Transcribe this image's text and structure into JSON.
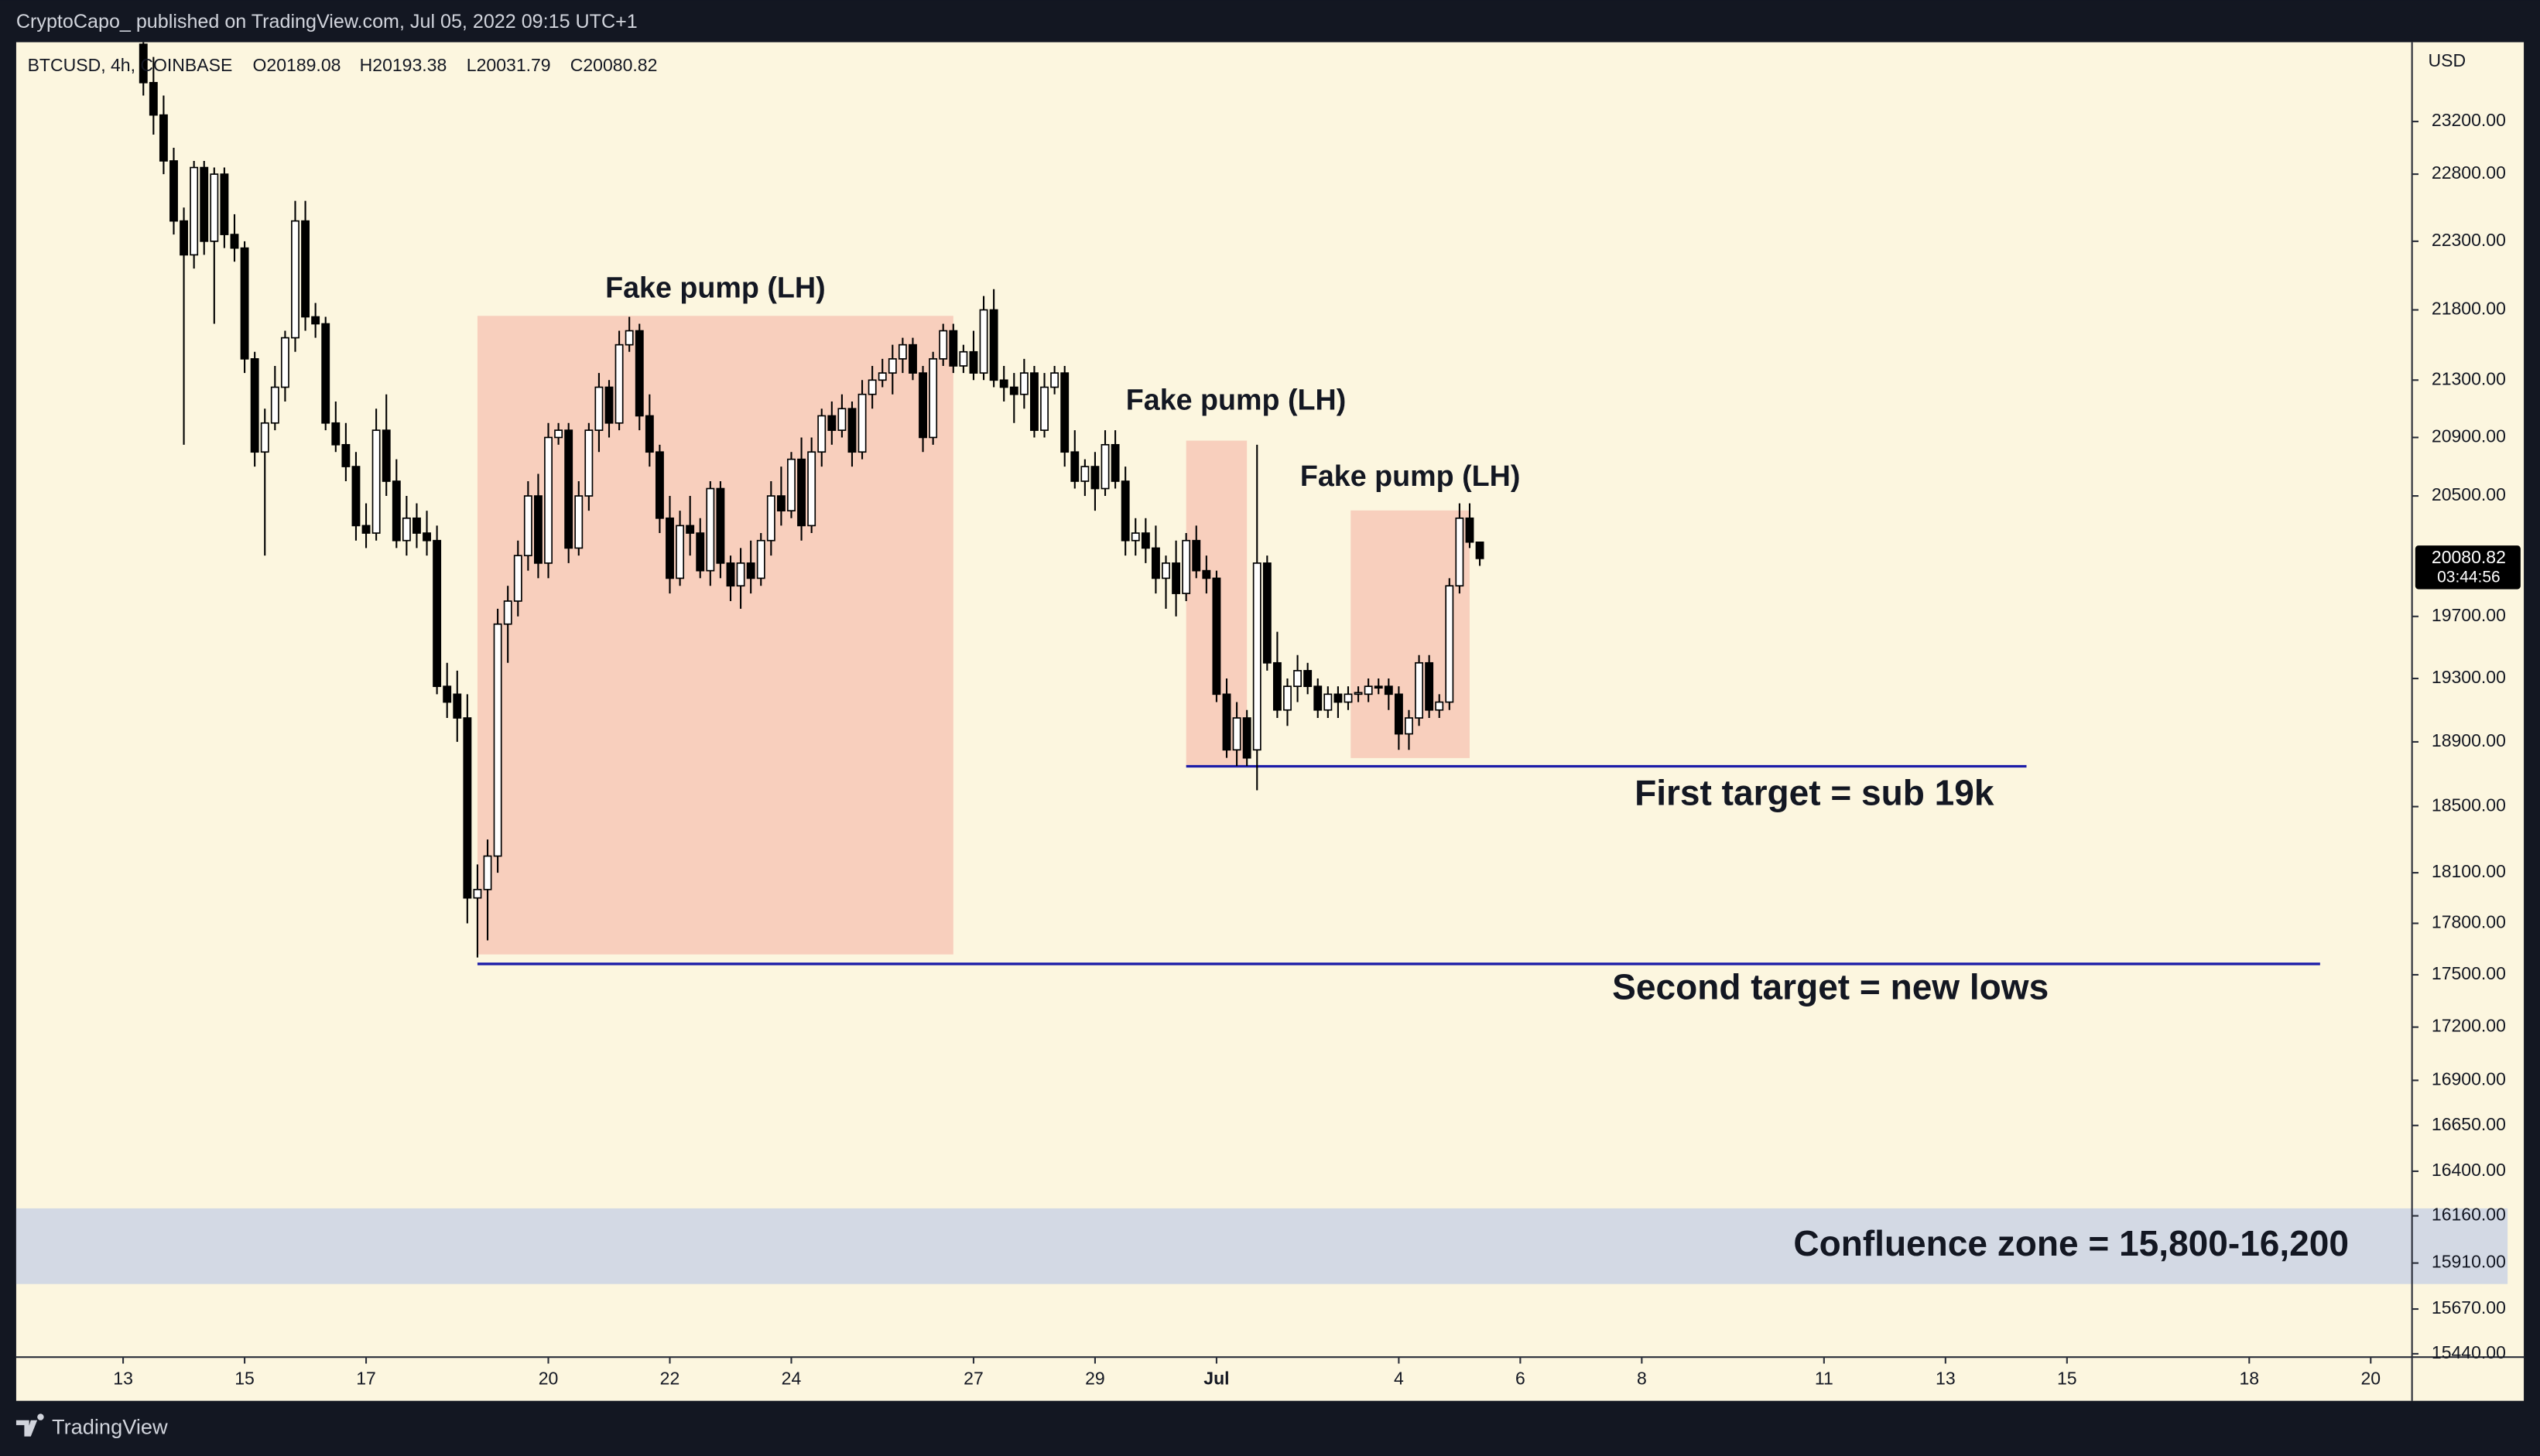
{
  "chart_data": {
    "type": "candlestick",
    "header": "CryptoCapo_ published on TradingView.com, Jul 05, 2022 09:15 UTC+1",
    "symbol": "BTCUSD, 4h, COINBASE",
    "legend_values": [
      "O20189.08",
      "H20193.38",
      "L20031.79",
      "C20080.82"
    ],
    "currency": "USD",
    "footer": "TradingView",
    "last_price": {
      "value": 20080.82,
      "label": "20080.82",
      "countdown": "03:44:56"
    },
    "log_scale": true,
    "up_color": "#ffffff",
    "down_color": "#000000",
    "background": "#fcf6df",
    "xlim": [
      -42.24,
      904.32
    ],
    "xticks": [
      {
        "value": 0,
        "label": "13"
      },
      {
        "value": 48,
        "label": "15"
      },
      {
        "value": 96,
        "label": "17"
      },
      {
        "value": 168,
        "label": "20"
      },
      {
        "value": 216,
        "label": "22"
      },
      {
        "value": 264,
        "label": "24"
      },
      {
        "value": 336,
        "label": "27"
      },
      {
        "value": 384,
        "label": "29"
      },
      {
        "value": 432,
        "label": "Jul"
      },
      {
        "value": 504,
        "label": "4"
      },
      {
        "value": 552,
        "label": "6"
      },
      {
        "value": 600,
        "label": "8"
      },
      {
        "value": 672,
        "label": "11"
      },
      {
        "value": 720,
        "label": "13"
      },
      {
        "value": 768,
        "label": "15"
      },
      {
        "value": 840,
        "label": "18"
      },
      {
        "value": 888,
        "label": "20"
      }
    ],
    "ylim": [
      15423,
      23816
    ],
    "yticks": [
      {
        "value": 23200,
        "label": "23200.00"
      },
      {
        "value": 22800,
        "label": "22800.00"
      },
      {
        "value": 22300,
        "label": "22300.00"
      },
      {
        "value": 21800,
        "label": "21800.00"
      },
      {
        "value": 21300,
        "label": "21300.00"
      },
      {
        "value": 20900,
        "label": "20900.00"
      },
      {
        "value": 20500,
        "label": "20500.00"
      },
      {
        "value": 19700,
        "label": "19700.00"
      },
      {
        "value": 19300,
        "label": "19300.00"
      },
      {
        "value": 18900,
        "label": "18900.00"
      },
      {
        "value": 18500,
        "label": "18500.00"
      },
      {
        "value": 18100,
        "label": "18100.00"
      },
      {
        "value": 17800,
        "label": "17800.00"
      },
      {
        "value": 17500,
        "label": "17500.00"
      },
      {
        "value": 17200,
        "label": "17200.00"
      },
      {
        "value": 16900,
        "label": "16900.00"
      },
      {
        "value": 16650,
        "label": "16650.00"
      },
      {
        "value": 16400,
        "label": "16400.00"
      },
      {
        "value": 16160,
        "label": "16160.00"
      },
      {
        "value": 15910,
        "label": "15910.00"
      },
      {
        "value": 15670,
        "label": "15670.00"
      },
      {
        "value": 15440,
        "label": "15440.00"
      }
    ],
    "x": [
      8,
      12,
      16,
      20,
      24,
      28,
      32,
      36,
      40,
      44,
      48,
      52,
      56,
      60,
      64,
      68,
      72,
      76,
      80,
      84,
      88,
      92,
      96,
      100,
      104,
      108,
      112,
      116,
      120,
      124,
      128,
      132,
      136,
      140,
      144,
      148,
      152,
      156,
      160,
      164,
      168,
      172,
      176,
      180,
      184,
      188,
      192,
      196,
      200,
      204,
      208,
      212,
      216,
      220,
      224,
      228,
      232,
      236,
      240,
      244,
      248,
      252,
      256,
      260,
      264,
      268,
      272,
      276,
      280,
      284,
      288,
      292,
      296,
      300,
      304,
      308,
      312,
      316,
      320,
      324,
      328,
      332,
      336,
      340,
      344,
      348,
      352,
      356,
      360,
      364,
      368,
      372,
      376,
      380,
      384,
      388,
      392,
      396,
      400,
      404,
      408,
      412,
      416,
      420,
      424,
      428,
      432,
      436,
      440,
      444,
      448,
      452,
      456,
      460,
      464,
      468,
      472,
      476,
      480,
      484,
      488,
      492,
      496,
      500,
      504,
      508,
      512,
      516,
      520,
      524,
      528,
      532,
      536
    ],
    "ohlc": [
      [
        23800,
        24100,
        23400,
        23500
      ],
      [
        23500,
        23700,
        23100,
        23250
      ],
      [
        23250,
        23400,
        22800,
        22900
      ],
      [
        22900,
        23000,
        22350,
        22450
      ],
      [
        22450,
        22550,
        20850,
        22200
      ],
      [
        22200,
        22900,
        22100,
        22850
      ],
      [
        22850,
        22900,
        22200,
        22300
      ],
      [
        22300,
        22850,
        21700,
        22800
      ],
      [
        22800,
        22850,
        22250,
        22350
      ],
      [
        22350,
        22500,
        22150,
        22250
      ],
      [
        22250,
        22300,
        21350,
        21450
      ],
      [
        21450,
        21500,
        20700,
        20800
      ],
      [
        20800,
        21100,
        20100,
        21000
      ],
      [
        21000,
        21400,
        20950,
        21250
      ],
      [
        21250,
        21650,
        21150,
        21600
      ],
      [
        21600,
        22600,
        21500,
        22450
      ],
      [
        22450,
        22600,
        21650,
        21750
      ],
      [
        21750,
        21850,
        21600,
        21700
      ],
      [
        21700,
        21750,
        20950,
        21000
      ],
      [
        21000,
        21150,
        20800,
        20850
      ],
      [
        20850,
        21000,
        20600,
        20700
      ],
      [
        20700,
        20800,
        20200,
        20300
      ],
      [
        20300,
        20450,
        20150,
        20250
      ],
      [
        20250,
        21100,
        20200,
        20950
      ],
      [
        20950,
        21200,
        20500,
        20600
      ],
      [
        20600,
        20750,
        20150,
        20200
      ],
      [
        20200,
        20500,
        20100,
        20350
      ],
      [
        20350,
        20450,
        20150,
        20250
      ],
      [
        20250,
        20400,
        20100,
        20200
      ],
      [
        20200,
        20300,
        19200,
        19250
      ],
      [
        19250,
        19400,
        19050,
        19150
      ],
      [
        19200,
        19350,
        18900,
        19050
      ],
      [
        19050,
        19200,
        17800,
        17950
      ],
      [
        17950,
        18150,
        17600,
        18000
      ],
      [
        18000,
        18300,
        17700,
        18200
      ],
      [
        18200,
        19750,
        18100,
        19650
      ],
      [
        19650,
        19900,
        19400,
        19800
      ],
      [
        19800,
        20200,
        19700,
        20100
      ],
      [
        20100,
        20600,
        20000,
        20500
      ],
      [
        20500,
        20650,
        19950,
        20050
      ],
      [
        20050,
        21000,
        19950,
        20900
      ],
      [
        20900,
        21000,
        20850,
        20950
      ],
      [
        20950,
        21000,
        20050,
        20150
      ],
      [
        20150,
        20600,
        20100,
        20500
      ],
      [
        20500,
        21000,
        20400,
        20950
      ],
      [
        20950,
        21350,
        20800,
        21250
      ],
      [
        21250,
        21300,
        20900,
        21000
      ],
      [
        21000,
        21650,
        20950,
        21550
      ],
      [
        21550,
        21750,
        21500,
        21650
      ],
      [
        21650,
        21700,
        20950,
        21050
      ],
      [
        21050,
        21200,
        20700,
        20800
      ],
      [
        20800,
        20850,
        20250,
        20350
      ],
      [
        20350,
        20500,
        19850,
        19950
      ],
      [
        19950,
        20400,
        19900,
        20300
      ],
      [
        20300,
        20500,
        20100,
        20250
      ],
      [
        20250,
        20350,
        19950,
        20000
      ],
      [
        20000,
        20600,
        19900,
        20550
      ],
      [
        20550,
        20600,
        19950,
        20050
      ],
      [
        20050,
        20100,
        19800,
        19900
      ],
      [
        19900,
        20150,
        19750,
        20050
      ],
      [
        20050,
        20200,
        19850,
        19950
      ],
      [
        19950,
        20250,
        19900,
        20200
      ],
      [
        20200,
        20600,
        20100,
        20500
      ],
      [
        20500,
        20700,
        20300,
        20400
      ],
      [
        20400,
        20800,
        20350,
        20750
      ],
      [
        20750,
        20900,
        20200,
        20300
      ],
      [
        20300,
        20900,
        20250,
        20800
      ],
      [
        20800,
        21100,
        20700,
        21050
      ],
      [
        21050,
        21150,
        20850,
        20950
      ],
      [
        20950,
        21200,
        20900,
        21100
      ],
      [
        21100,
        21150,
        20700,
        20800
      ],
      [
        20800,
        21300,
        20750,
        21200
      ],
      [
        21200,
        21400,
        21100,
        21300
      ],
      [
        21300,
        21450,
        21250,
        21350
      ],
      [
        21350,
        21550,
        21200,
        21450
      ],
      [
        21450,
        21600,
        21350,
        21550
      ],
      [
        21550,
        21600,
        21300,
        21350
      ],
      [
        21350,
        21400,
        20800,
        20900
      ],
      [
        20900,
        21500,
        20850,
        21450
      ],
      [
        21450,
        21700,
        21400,
        21650
      ],
      [
        21650,
        21700,
        21350,
        21400
      ],
      [
        21400,
        21550,
        21350,
        21500
      ],
      [
        21500,
        21650,
        21300,
        21350
      ],
      [
        21350,
        21900,
        21300,
        21800
      ],
      [
        21800,
        21950,
        21250,
        21300
      ],
      [
        21300,
        21400,
        21150,
        21250
      ],
      [
        21250,
        21350,
        21000,
        21200
      ],
      [
        21200,
        21450,
        21100,
        21350
      ],
      [
        21350,
        21400,
        20900,
        20950
      ],
      [
        20950,
        21350,
        20900,
        21250
      ],
      [
        21250,
        21400,
        21200,
        21350
      ],
      [
        21350,
        21400,
        20700,
        20800
      ],
      [
        20800,
        20950,
        20550,
        20600
      ],
      [
        20600,
        20750,
        20500,
        20700
      ],
      [
        20700,
        20800,
        20400,
        20550
      ],
      [
        20550,
        20950,
        20500,
        20850
      ],
      [
        20850,
        20950,
        20550,
        20600
      ],
      [
        20600,
        20700,
        20100,
        20200
      ],
      [
        20200,
        20350,
        20100,
        20250
      ],
      [
        20250,
        20350,
        20050,
        20150
      ],
      [
        20150,
        20300,
        19850,
        19950
      ],
      [
        19950,
        20100,
        19750,
        20050
      ],
      [
        20050,
        20200,
        19700,
        19850
      ],
      [
        19850,
        20250,
        19800,
        20200
      ],
      [
        20200,
        20300,
        19950,
        20000
      ],
      [
        20000,
        20100,
        19850,
        19950
      ],
      [
        19950,
        20000,
        19150,
        19200
      ],
      [
        19200,
        19300,
        18800,
        18850
      ],
      [
        18850,
        19150,
        18750,
        19050
      ],
      [
        19050,
        19100,
        18750,
        18800
      ],
      [
        18850,
        20850,
        18600,
        20050
      ],
      [
        20050,
        20100,
        19350,
        19400
      ],
      [
        19400,
        19600,
        19050,
        19100
      ],
      [
        19100,
        19300,
        19000,
        19250
      ],
      [
        19250,
        19450,
        19150,
        19350
      ],
      [
        19350,
        19400,
        19200,
        19250
      ],
      [
        19250,
        19300,
        19050,
        19100
      ],
      [
        19100,
        19250,
        19050,
        19200
      ],
      [
        19200,
        19250,
        19050,
        19150
      ],
      [
        19150,
        19250,
        19100,
        19200
      ],
      [
        19200,
        19250,
        19150,
        19210
      ],
      [
        19200,
        19300,
        19150,
        19250
      ],
      [
        19250,
        19300,
        19200,
        19240
      ],
      [
        19250,
        19300,
        19100,
        19200
      ],
      [
        19200,
        19250,
        18850,
        18950
      ],
      [
        18950,
        19100,
        18850,
        19050
      ],
      [
        19050,
        19450,
        19000,
        19400
      ],
      [
        19400,
        19450,
        19050,
        19100
      ],
      [
        19100,
        19200,
        19050,
        19150
      ],
      [
        19150,
        19950,
        19100,
        19900
      ],
      [
        19900,
        20450,
        19850,
        20350
      ],
      [
        20350,
        20450,
        20150,
        20190
      ],
      [
        20189.08,
        20193.38,
        20031.79,
        20080.82
      ]
    ],
    "zones": [
      {
        "label": "Fake pump (LH)",
        "x": [
          140,
          328
        ],
        "y": [
          17618,
          21757
        ],
        "color": "#f8cfbd"
      },
      {
        "label": "Fake pump (LH)",
        "x": [
          420,
          444
        ],
        "y": [
          18748,
          20878
        ],
        "color": "#f8cfbd"
      },
      {
        "label": "Fake pump (LH)",
        "x": [
          485,
          532
        ],
        "y": [
          18799,
          20402
        ],
        "color": "#f8cfbd"
      }
    ],
    "levels": [
      {
        "label": "First target = sub 19k",
        "x": [
          420,
          752
        ],
        "value": 18748,
        "color": "#1c1ca8"
      },
      {
        "label": "Second target = new lows",
        "x": [
          140,
          868
        ],
        "value": 17563,
        "color": "#1c1ca8"
      }
    ],
    "band": {
      "label": "Confluence zone = 15,800-16,200",
      "y": [
        15800,
        16200
      ],
      "color": "#d3d9e4"
    }
  }
}
